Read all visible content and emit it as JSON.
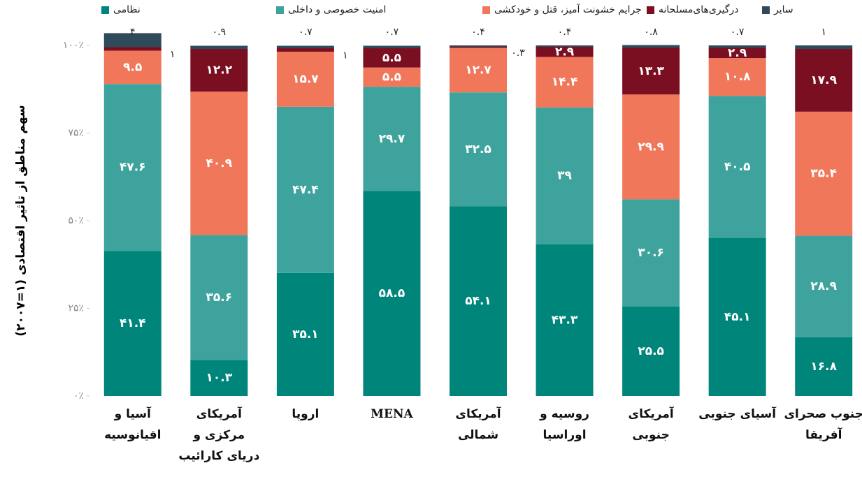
{
  "chart_data": {
    "type": "stacked_bar",
    "y_label": "سهم مناطق از تاثیر اقتصادی (۱=۲۰۰۷)",
    "categories": [
      "آسیا و اقیانوسیه",
      "آمریکای مرکزی و دریای کارائیب",
      "اروپا",
      "MENA",
      "آمریکای شمالی",
      "روسیه و اوراسیا",
      "آمریکای جنوبی",
      "آسیای جنوبی",
      "جنوب صحرای آفریقا"
    ],
    "series": [
      {
        "name": "نظامی",
        "color": "#00857a",
        "values": [
          41.4,
          10.3,
          35.1,
          58.5,
          54.1,
          43.3,
          25.5,
          45.1,
          16.8
        ],
        "value_labels": [
          "۴۱.۴",
          "۱۰.۳",
          "۳۵.۱",
          "۵۸.۵",
          "۵۴.۱",
          "۴۳.۳",
          "۲۵.۵",
          "۴۵.۱",
          "۱۶.۸"
        ]
      },
      {
        "name": "امنیت خصوصی و داخلی",
        "color": "#3fa39d",
        "values": [
          47.6,
          35.6,
          47.4,
          29.7,
          32.5,
          39,
          30.6,
          40.5,
          28.9
        ],
        "value_labels": [
          "۴۷.۶",
          "۳۵.۶",
          "۴۷.۴",
          "۲۹.۷",
          "۳۲.۵",
          "۳۹",
          "۳۰.۶",
          "۴۰.۵",
          "۲۸.۹"
        ]
      },
      {
        "name": "جرایم خشونت آمیز، قتل و خودکشی",
        "color": "#f0775a",
        "values": [
          9.5,
          40.9,
          15.7,
          5.5,
          12.7,
          14.4,
          29.9,
          10.8,
          35.4
        ],
        "value_labels": [
          "۹.۵",
          "۴۰.۹",
          "۱۵.۷",
          "۵.۵",
          "۱۲.۷",
          "۱۴.۴",
          "۲۹.۹",
          "۱۰.۸",
          "۳۵.۴"
        ]
      },
      {
        "name": "درگیری‌های‌مسلحانه",
        "color": "#7b0f22",
        "values": [
          1,
          12.2,
          1,
          5.5,
          0.3,
          2.9,
          13.3,
          2.9,
          17.9
        ],
        "value_labels": [
          "۱",
          "۱۲.۲",
          "۱",
          "۵.۵",
          "۰.۳",
          "۲.۹",
          "۱۳.۳",
          "۲.۹",
          "۱۷.۹"
        ]
      },
      {
        "name": "سایر",
        "color": "#2f4b5a",
        "values": [
          4,
          0.9,
          0.7,
          0.7,
          0.4,
          0.4,
          0.8,
          0.7,
          1
        ],
        "value_labels": [
          "۴",
          "۰.۹",
          "۰.۷",
          "۰.۷",
          "۰.۴",
          "۰.۴",
          "۰.۸",
          "۰.۷",
          "۱"
        ]
      }
    ],
    "ylim": [
      0,
      100
    ],
    "yticks": [
      {
        "value": 0,
        "label": "۰٪"
      },
      {
        "value": 25,
        "label": "۲۵٪"
      },
      {
        "value": 50,
        "label": "۵۰٪"
      },
      {
        "value": 75,
        "label": "۷۵٪"
      },
      {
        "value": 100,
        "label": "۱۰۰٪"
      }
    ],
    "grid": false
  }
}
